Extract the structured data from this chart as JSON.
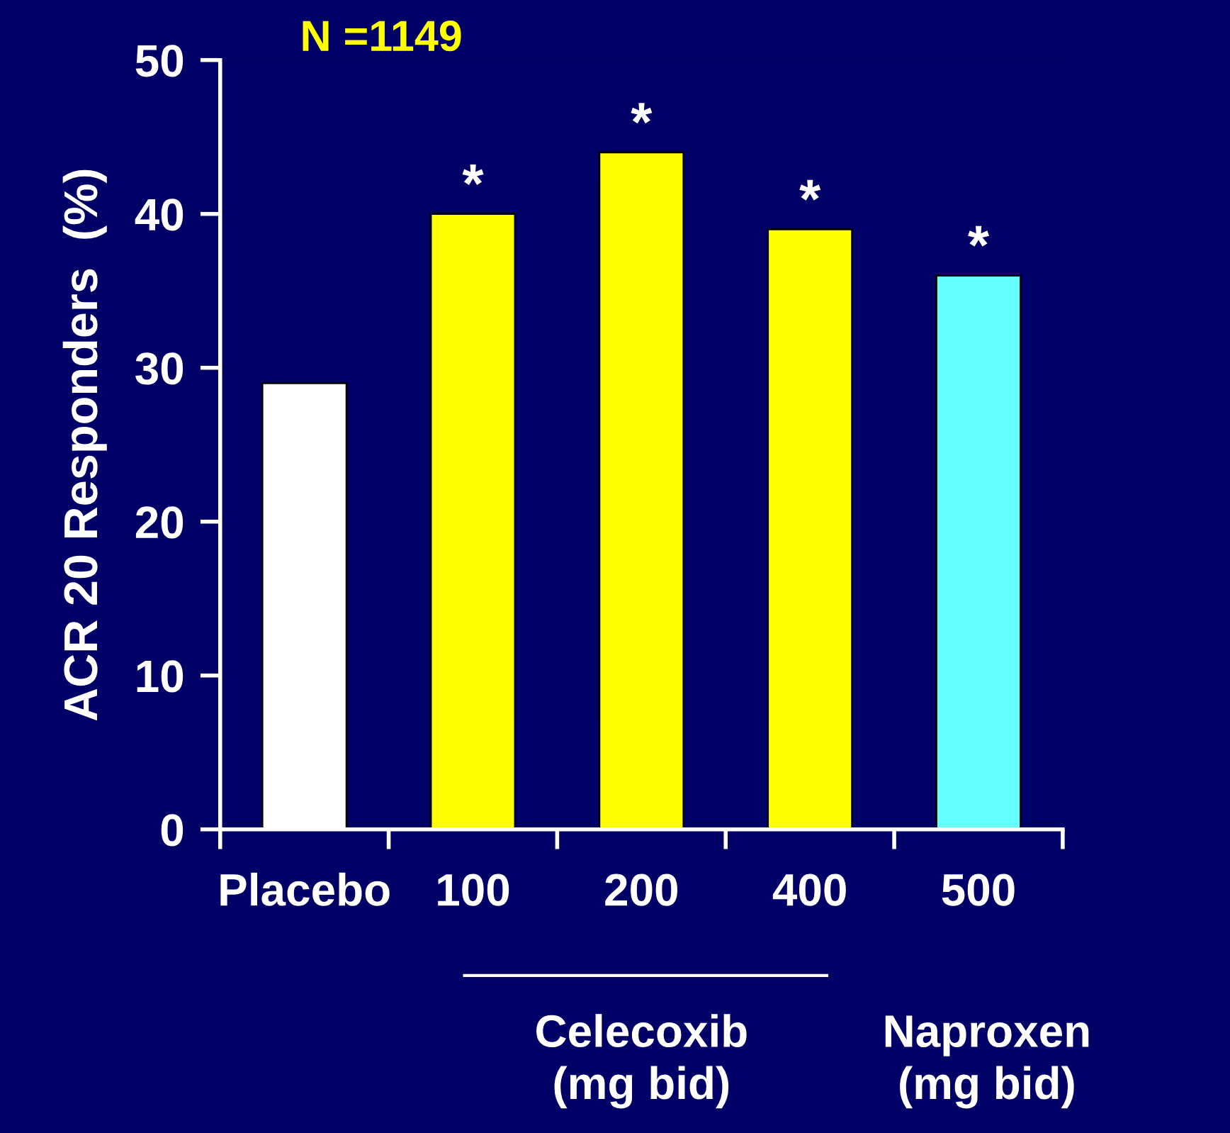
{
  "chart_data": {
    "type": "bar",
    "ylabel": "ACR 20 Responders  (%)",
    "categories": [
      "Placebo",
      "100",
      "200",
      "400",
      "500"
    ],
    "values": [
      29,
      40,
      44,
      39,
      36
    ],
    "colors": [
      "#ffffff",
      "#ffff00",
      "#ffff00",
      "#ffff00",
      "#66ffff"
    ],
    "ylim": [
      0,
      50
    ],
    "yticks": [
      0,
      10,
      20,
      30,
      40,
      50
    ],
    "grid": false,
    "annotations": [
      "N =1149",
      "Celecoxib\n(mg bid)",
      "Naproxen\n(mg bid)",
      {
        "text": "*",
        "x": "100",
        "y": 40
      },
      {
        "text": "*",
        "x": "200",
        "y": 44
      },
      {
        "text": "*",
        "x": "400",
        "y": 39
      },
      {
        "text": "*",
        "x": "500",
        "y": 36
      }
    ]
  }
}
